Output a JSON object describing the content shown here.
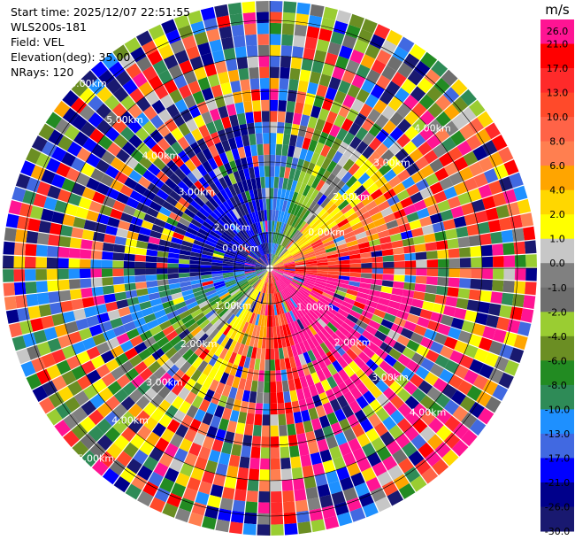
{
  "header": {
    "start_time": "Start time: 2025/12/07 22:51:55",
    "instrument": "WLS200s-181",
    "field": "Field: VEL",
    "elevation": "Elevation(deg): 35.00",
    "nrays": "NRays: 120"
  },
  "chart_data": {
    "type": "heatmap",
    "projection": "polar-ppi",
    "field": "VEL",
    "units": "m/s",
    "n_rays": 120,
    "elevation_deg": 35.0,
    "range_rings_km": [
      "0.00km",
      "0.00km",
      "1.00km",
      "2.00km",
      "3.00km",
      "4.00km",
      "5.00km"
    ],
    "range_ring_labels": {
      "upper_left": [
        "6.00km",
        "5.00km",
        "4.00km",
        "3.00km",
        "2.00km"
      ],
      "upper_right": [
        "4.00km",
        "3.00km",
        "2.00km"
      ],
      "lower_left": [
        "1.00km",
        "2.00km",
        "3.00km",
        "4.00km",
        "5.00km"
      ],
      "lower_right": [
        "1.00km",
        "2.00km",
        "3.00km",
        "4.00km"
      ]
    },
    "colorbar": {
      "title": "m/s",
      "ticks": [
        "26.0",
        "21.0",
        "17.0",
        "13.0",
        "10.0",
        "8.0",
        "6.0",
        "4.0",
        "2.0",
        "1.0",
        "0.0",
        "-1.0",
        "-2.0",
        "-4.0",
        "-6.0",
        "-8.0",
        "-10.0",
        "-13.0",
        "-17.0",
        "-21.0",
        "-26.0",
        "-30.0"
      ],
      "colors": [
        "#ff1493",
        "#ff0000",
        "#ff2a2a",
        "#ff4a2a",
        "#ff6347",
        "#ff7f50",
        "#ffa500",
        "#ffd700",
        "#ffff00",
        "#c7c7c7",
        "#808080",
        "#6e6e6e",
        "#9acd32",
        "#6b8e23",
        "#228b22",
        "#2e8b57",
        "#1e90ff",
        "#4169e1",
        "#0000ff",
        "#00008b",
        "#191970",
        "#191970"
      ]
    },
    "velocity_structure": {
      "positive_sector_azimuth_deg": [
        60,
        200
      ],
      "positive_peak_azimuth_deg": 130,
      "negative_sector_azimuth_deg": [
        270,
        30
      ],
      "noise_beyond_km": 3.0
    }
  }
}
